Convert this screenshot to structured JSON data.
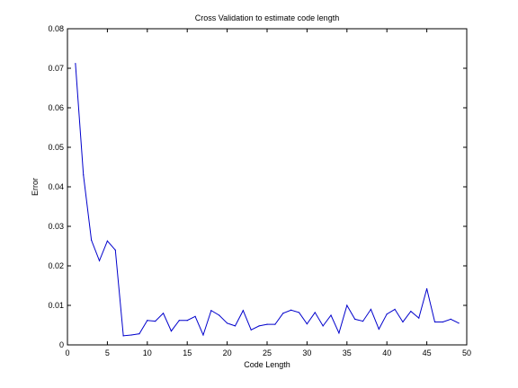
{
  "chart_data": {
    "type": "line",
    "title": "Cross Validation to estimate code length",
    "xlabel": "Code Length",
    "ylabel": "Error",
    "xlim": [
      0,
      50
    ],
    "ylim": [
      0,
      0.08
    ],
    "xticks": [
      "0",
      "5",
      "10",
      "15",
      "20",
      "25",
      "30",
      "35",
      "40",
      "45",
      "50"
    ],
    "yticks": [
      "0",
      "0.01",
      "0.02",
      "0.03",
      "0.04",
      "0.05",
      "0.06",
      "0.07",
      "0.08"
    ],
    "grid": false,
    "series": [
      {
        "color": "#0000cc",
        "x": [
          1,
          2,
          3,
          4,
          5,
          6,
          7,
          8,
          9,
          10,
          11,
          12,
          13,
          14,
          15,
          16,
          17,
          18,
          19,
          20,
          21,
          22,
          23,
          24,
          25,
          26,
          27,
          28,
          29,
          30,
          31,
          32,
          33,
          34,
          35,
          36,
          37,
          38,
          39,
          40,
          41,
          42,
          43,
          44,
          45,
          46,
          47,
          48,
          49
        ],
        "y": [
          0.0712,
          0.043,
          0.0265,
          0.0213,
          0.0263,
          0.024,
          0.0023,
          0.0025,
          0.0028,
          0.0062,
          0.006,
          0.008,
          0.0035,
          0.0062,
          0.0062,
          0.0072,
          0.0025,
          0.0087,
          0.0075,
          0.0055,
          0.0048,
          0.0087,
          0.0038,
          0.0048,
          0.0052,
          0.0052,
          0.008,
          0.0088,
          0.0082,
          0.0053,
          0.0082,
          0.0048,
          0.0075,
          0.003,
          0.01,
          0.0065,
          0.006,
          0.009,
          0.004,
          0.0078,
          0.009,
          0.0058,
          0.0085,
          0.0068,
          0.0142,
          0.0058,
          0.0058,
          0.0065,
          0.0055
        ]
      }
    ]
  }
}
